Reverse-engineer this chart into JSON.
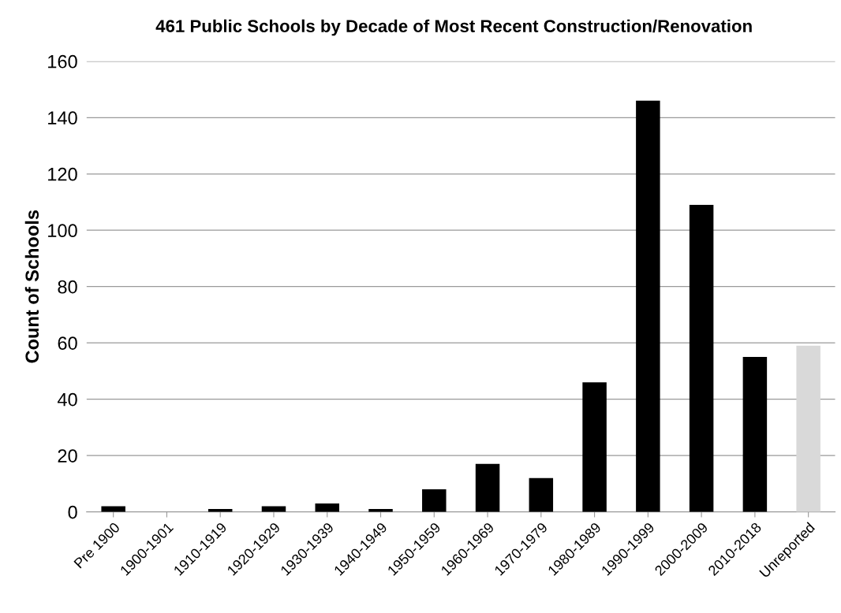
{
  "chart_data": {
    "type": "bar",
    "title": "461 Public Schools by Decade of Most Recent Construction/Renovation",
    "ylabel": "Count of Schools",
    "categories": [
      "Pre 1900",
      "1900-1901",
      "1910-1919",
      "1920-1929",
      "1930-1939",
      "1940-1949",
      "1950-1959",
      "1960-1969",
      "1970-1979",
      "1980-1989",
      "1990-1999",
      "2000-2009",
      "2010-2018",
      "Unreported"
    ],
    "values": [
      2,
      0,
      1,
      2,
      3,
      1,
      8,
      17,
      12,
      46,
      146,
      109,
      55,
      59
    ],
    "colors": [
      "#000000",
      "#000000",
      "#000000",
      "#000000",
      "#000000",
      "#000000",
      "#000000",
      "#000000",
      "#000000",
      "#000000",
      "#000000",
      "#000000",
      "#000000",
      "#d9d9d9"
    ],
    "ylim": [
      0,
      160
    ],
    "yticks": [
      0,
      20,
      40,
      60,
      80,
      100,
      120,
      140,
      160
    ],
    "grid": "y"
  }
}
